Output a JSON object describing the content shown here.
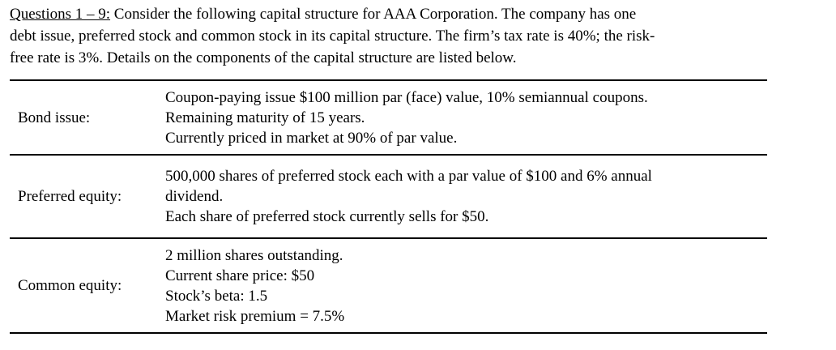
{
  "intro": {
    "question_label": "Questions 1 – 9:",
    "line1_rest": " Consider the following capital structure for AAA Corporation. The company has one",
    "line2": "debt issue, preferred stock and common stock in its capital structure. The firm’s tax rate is 40%; the risk-",
    "line3": "free rate is 3%. Details on the components of the capital structure are listed below."
  },
  "rows": [
    {
      "label": "Bond issue:",
      "lines": [
        "Coupon-paying issue $100 million par (face) value, 10% semiannual coupons.",
        "Remaining maturity of 15 years.",
        "Currently priced in market at 90% of par value."
      ]
    },
    {
      "label": "Preferred equity:",
      "lines": [
        "500,000 shares of preferred stock each with a par value of $100 and 6% annual",
        "dividend.",
        "Each share of preferred stock currently sells for $50."
      ]
    },
    {
      "label": "Common equity:",
      "lines": [
        "2 million shares outstanding.",
        "Current share price: $50",
        "Stock’s beta: 1.5",
        "Market risk premium = 7.5%"
      ]
    }
  ]
}
